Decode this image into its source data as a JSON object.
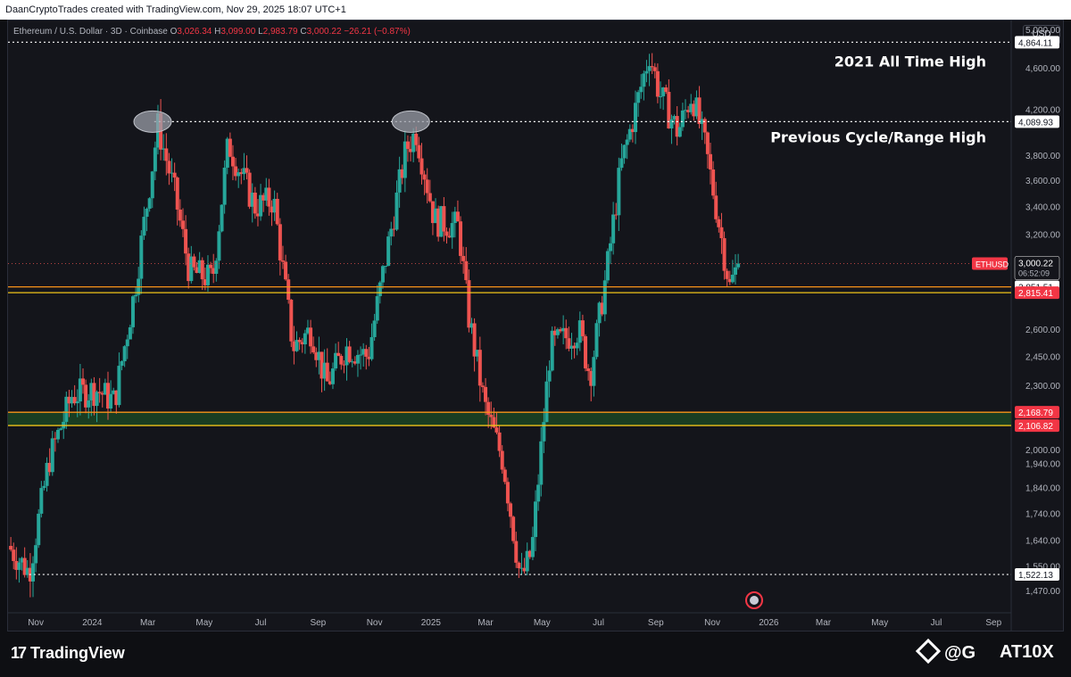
{
  "header": {
    "text": "DaanCryptoTrades created with TradingView.com, Nov 29, 2025 18:07 UTC+1"
  },
  "legend": {
    "symbol": "Ethereum / U.S. Dollar · 3D · Coinbase",
    "o_label": "O",
    "o_value": "3,026.34",
    "h_label": "H",
    "h_value": "3,099.00",
    "l_label": "L",
    "l_value": "2,983.79",
    "c_label": "C",
    "c_value": "3,000.22",
    "change": "−26.21 (−0.87%)"
  },
  "currency_button": "USD",
  "footer": {
    "brand": "TradingView",
    "watermark_left": "@G",
    "watermark_right": "AT10X",
    "logo_mark": "17"
  },
  "colors": {
    "up": "#26a69a",
    "down": "#ef5350",
    "background": "#14151b",
    "orange_line": "#f7931a",
    "yellow_line": "#f0c419",
    "zone_fill": "#1a3d22",
    "price_tag_red": "#f23645"
  },
  "chart_data": {
    "type": "candlestick",
    "y_scale": "log",
    "ylim": [
      1400,
      5100
    ],
    "y_ticks": [
      "5,000.00",
      "4,600.00",
      "4,200.00",
      "3,800.00",
      "3,600.00",
      "3,400.00",
      "3,200.00",
      "2,600.00",
      "2,450.00",
      "2,300.00",
      "2,000.00",
      "1,940.00",
      "1,840.00",
      "1,740.00",
      "1,640.00",
      "1,550.00",
      "1,470.00"
    ],
    "x_ticks": [
      "Nov",
      "2024",
      "Mar",
      "May",
      "Jul",
      "Sep",
      "Nov",
      "2025",
      "Mar",
      "May",
      "Jul",
      "Sep",
      "Nov",
      "2026",
      "Mar",
      "May",
      "Jul",
      "Sep"
    ],
    "xlim": [
      "2023-10-02",
      "2026-09-20"
    ],
    "x_tick_dates": [
      "2023-11-01",
      "2024-01-01",
      "2024-03-01",
      "2024-05-01",
      "2024-07-01",
      "2024-09-01",
      "2024-11-01",
      "2025-01-01",
      "2025-03-01",
      "2025-05-01",
      "2025-07-01",
      "2025-09-01",
      "2025-11-01",
      "2026-01-01",
      "2026-03-01",
      "2026-05-01",
      "2026-07-01",
      "2026-09-01"
    ],
    "anchors": [
      [
        "2023-10-02",
        1620
      ],
      [
        "2023-10-25",
        1530
      ],
      [
        "2023-11-15",
        1950
      ],
      [
        "2023-12-10",
        2250
      ],
      [
        "2024-01-05",
        2280
      ],
      [
        "2024-01-25",
        2220
      ],
      [
        "2024-02-15",
        2800
      ],
      [
        "2024-03-12",
        4050
      ],
      [
        "2024-03-30",
        3500
      ],
      [
        "2024-04-15",
        2950
      ],
      [
        "2024-05-10",
        2900
      ],
      [
        "2024-05-27",
        3900
      ],
      [
        "2024-06-25",
        3400
      ],
      [
        "2024-07-15",
        3450
      ],
      [
        "2024-08-05",
        2500
      ],
      [
        "2024-08-25",
        2600
      ],
      [
        "2024-09-10",
        2300
      ],
      [
        "2024-10-01",
        2500
      ],
      [
        "2024-10-25",
        2450
      ],
      [
        "2024-11-15",
        3100
      ],
      [
        "2024-12-05",
        3850
      ],
      [
        "2024-12-16",
        4000
      ],
      [
        "2025-01-05",
        3300
      ],
      [
        "2025-01-31",
        3250
      ],
      [
        "2025-02-10",
        2700
      ],
      [
        "2025-02-28",
        2200
      ],
      [
        "2025-03-20",
        1950
      ],
      [
        "2025-04-08",
        1500
      ],
      [
        "2025-04-20",
        1600
      ],
      [
        "2025-05-10",
        2500
      ],
      [
        "2025-06-10",
        2600
      ],
      [
        "2025-06-22",
        2350
      ],
      [
        "2025-07-10",
        2950
      ],
      [
        "2025-07-25",
        3700
      ],
      [
        "2025-08-10",
        4200
      ],
      [
        "2025-08-25",
        4750
      ],
      [
        "2025-09-05",
        4350
      ],
      [
        "2025-09-25",
        4000
      ],
      [
        "2025-10-10",
        4350
      ],
      [
        "2025-10-25",
        3850
      ],
      [
        "2025-11-05",
        3400
      ],
      [
        "2025-11-20",
        2850
      ],
      [
        "2025-11-29",
        3000
      ]
    ],
    "last_close": 3000.22,
    "candle_interval": "3D",
    "levels": [
      {
        "value": 4864.11,
        "label": "4,864.11",
        "style": "dotted",
        "color": "#ffffff"
      },
      {
        "value": 4089.93,
        "label": "4,089.93",
        "style": "dotted",
        "color": "#ffffff"
      },
      {
        "value": 1522.13,
        "label": "1,522.13",
        "style": "dotted",
        "color": "#ffffff"
      },
      {
        "value": 2851.51,
        "label": "2,851.51",
        "style": "solid",
        "color": "#f7931a"
      },
      {
        "value": 2815.41,
        "label": "2,815.41",
        "style": "solid",
        "color": "#f0c419",
        "tag": "red"
      },
      {
        "value": 2168.79,
        "label": "2,168.79",
        "style": "solid",
        "color": "#f7931a",
        "tag": "red"
      },
      {
        "value": 2106.82,
        "label": "2,106.82",
        "style": "solid",
        "color": "#f0c419",
        "tag": "red"
      }
    ],
    "current_price": {
      "symbol": "ETHUSD",
      "value": "3,000.22",
      "countdown": "06:52:09"
    },
    "annotations": [
      {
        "text": "2021 All Time High",
        "anchor_value": 4864.11
      },
      {
        "text": "Previous Cycle/Range High",
        "anchor_value": 4089.93
      }
    ],
    "highlight_marks": [
      {
        "shape": "ellipse",
        "date": "2024-03-12",
        "value": 4089.93
      },
      {
        "shape": "ellipse",
        "date": "2024-12-16",
        "value": 4089.93
      }
    ],
    "zone": {
      "top": 2168.79,
      "bottom": 2106.82
    }
  }
}
